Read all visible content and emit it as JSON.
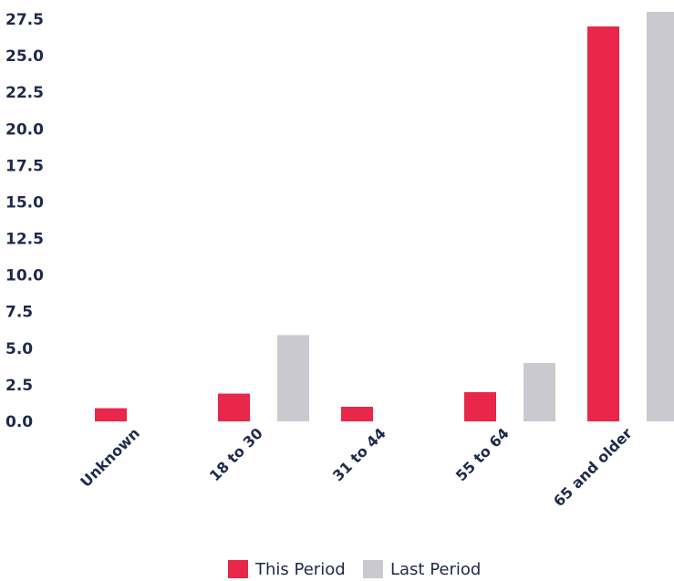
{
  "chart_data": {
    "type": "bar",
    "categories": [
      "Unknown",
      "18 to 30",
      "31 to 44",
      "55 to 64",
      "65 and older"
    ],
    "series": [
      {
        "name": "This Period",
        "color": "#e8274a",
        "values": [
          0.9,
          1.9,
          1.0,
          2.0,
          27.0
        ]
      },
      {
        "name": "Last Period",
        "color": "#c9c9cf",
        "values": [
          0,
          5.9,
          0,
          4.0,
          28.0
        ]
      }
    ],
    "ylim": [
      0,
      27.5
    ],
    "yticks": [
      "0.0",
      "2.5",
      "5.0",
      "7.5",
      "10.0",
      "12.5",
      "15.0",
      "17.5",
      "20.0",
      "22.5",
      "25.0",
      "27.5"
    ],
    "grid": false,
    "legend_position": "bottom-center",
    "title": "",
    "xlabel": "",
    "ylabel": ""
  }
}
